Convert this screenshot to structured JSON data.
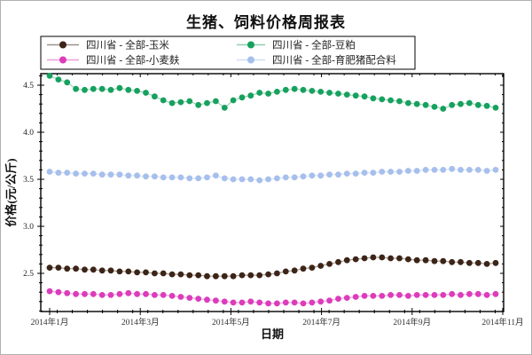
{
  "figure": {
    "title": "生猪、饲料价格周报表"
  },
  "chart_data": {
    "type": "line",
    "title": "生猪、饲料价格周报表",
    "xlabel": "日期",
    "ylabel": "价格(元/公斤)",
    "legend_position": "top",
    "grid": false,
    "marker": "circle",
    "x_unit": "week",
    "weeks": 52,
    "x_tick_labels": [
      "2014年1月",
      "2014年3月",
      "2014年5月",
      "2014年7月",
      "2014年9月",
      "2014年11月"
    ],
    "y_tick_labels": [
      "2.5",
      "3.0",
      "3.5",
      "4.0",
      "4.5"
    ],
    "y_major_ticks": [
      2.5,
      3.0,
      3.5,
      4.0,
      4.5
    ],
    "y_minor_step": 0.1,
    "ylim": [
      2.09,
      4.62
    ],
    "series": [
      {
        "key": "corn",
        "name": "四川省 - 全部-玉米",
        "color": "#3c2417",
        "values": [
          2.56,
          2.56,
          2.55,
          2.55,
          2.54,
          2.54,
          2.53,
          2.53,
          2.52,
          2.52,
          2.51,
          2.51,
          2.5,
          2.5,
          2.49,
          2.49,
          2.48,
          2.48,
          2.47,
          2.47,
          2.47,
          2.47,
          2.48,
          2.48,
          2.48,
          2.49,
          2.5,
          2.52,
          2.53,
          2.55,
          2.56,
          2.58,
          2.6,
          2.62,
          2.64,
          2.65,
          2.66,
          2.67,
          2.67,
          2.66,
          2.66,
          2.65,
          2.64,
          2.64,
          2.63,
          2.63,
          2.62,
          2.62,
          2.61,
          2.61,
          2.6,
          2.61
        ]
      },
      {
        "key": "wheat-bran",
        "name": "四川省 - 全部-小麦麸",
        "color": "#dc3cbc",
        "values": [
          2.31,
          2.3,
          2.29,
          2.28,
          2.28,
          2.28,
          2.27,
          2.27,
          2.28,
          2.29,
          2.28,
          2.28,
          2.27,
          2.27,
          2.26,
          2.25,
          2.24,
          2.23,
          2.22,
          2.21,
          2.2,
          2.19,
          2.19,
          2.2,
          2.19,
          2.18,
          2.18,
          2.19,
          2.19,
          2.18,
          2.19,
          2.2,
          2.21,
          2.23,
          2.24,
          2.25,
          2.26,
          2.26,
          2.26,
          2.27,
          2.27,
          2.26,
          2.27,
          2.27,
          2.27,
          2.27,
          2.28,
          2.27,
          2.28,
          2.28,
          2.27,
          2.28
        ]
      },
      {
        "key": "soybean-meal",
        "name": "四川省 - 全部-豆粕",
        "color": "#17a15e",
        "values": [
          4.6,
          4.56,
          4.53,
          4.46,
          4.45,
          4.46,
          4.46,
          4.45,
          4.47,
          4.45,
          4.44,
          4.42,
          4.38,
          4.34,
          4.31,
          4.32,
          4.33,
          4.29,
          4.31,
          4.33,
          4.26,
          4.34,
          4.37,
          4.39,
          4.42,
          4.41,
          4.43,
          4.45,
          4.46,
          4.45,
          4.44,
          4.43,
          4.42,
          4.41,
          4.4,
          4.39,
          4.38,
          4.36,
          4.35,
          4.34,
          4.33,
          4.31,
          4.3,
          4.29,
          4.27,
          4.25,
          4.29,
          4.3,
          4.31,
          4.29,
          4.28,
          4.26
        ]
      },
      {
        "key": "pig-feed",
        "name": "四川省 - 全部-育肥猪配合料",
        "color": "#a6bfec",
        "values": [
          3.58,
          3.57,
          3.57,
          3.56,
          3.56,
          3.56,
          3.55,
          3.55,
          3.55,
          3.54,
          3.54,
          3.53,
          3.53,
          3.52,
          3.52,
          3.52,
          3.51,
          3.51,
          3.52,
          3.54,
          3.51,
          3.5,
          3.5,
          3.5,
          3.49,
          3.5,
          3.51,
          3.52,
          3.52,
          3.53,
          3.54,
          3.54,
          3.55,
          3.55,
          3.56,
          3.56,
          3.57,
          3.57,
          3.58,
          3.58,
          3.58,
          3.59,
          3.59,
          3.6,
          3.6,
          3.6,
          3.61,
          3.6,
          3.6,
          3.6,
          3.59,
          3.6
        ]
      }
    ]
  }
}
